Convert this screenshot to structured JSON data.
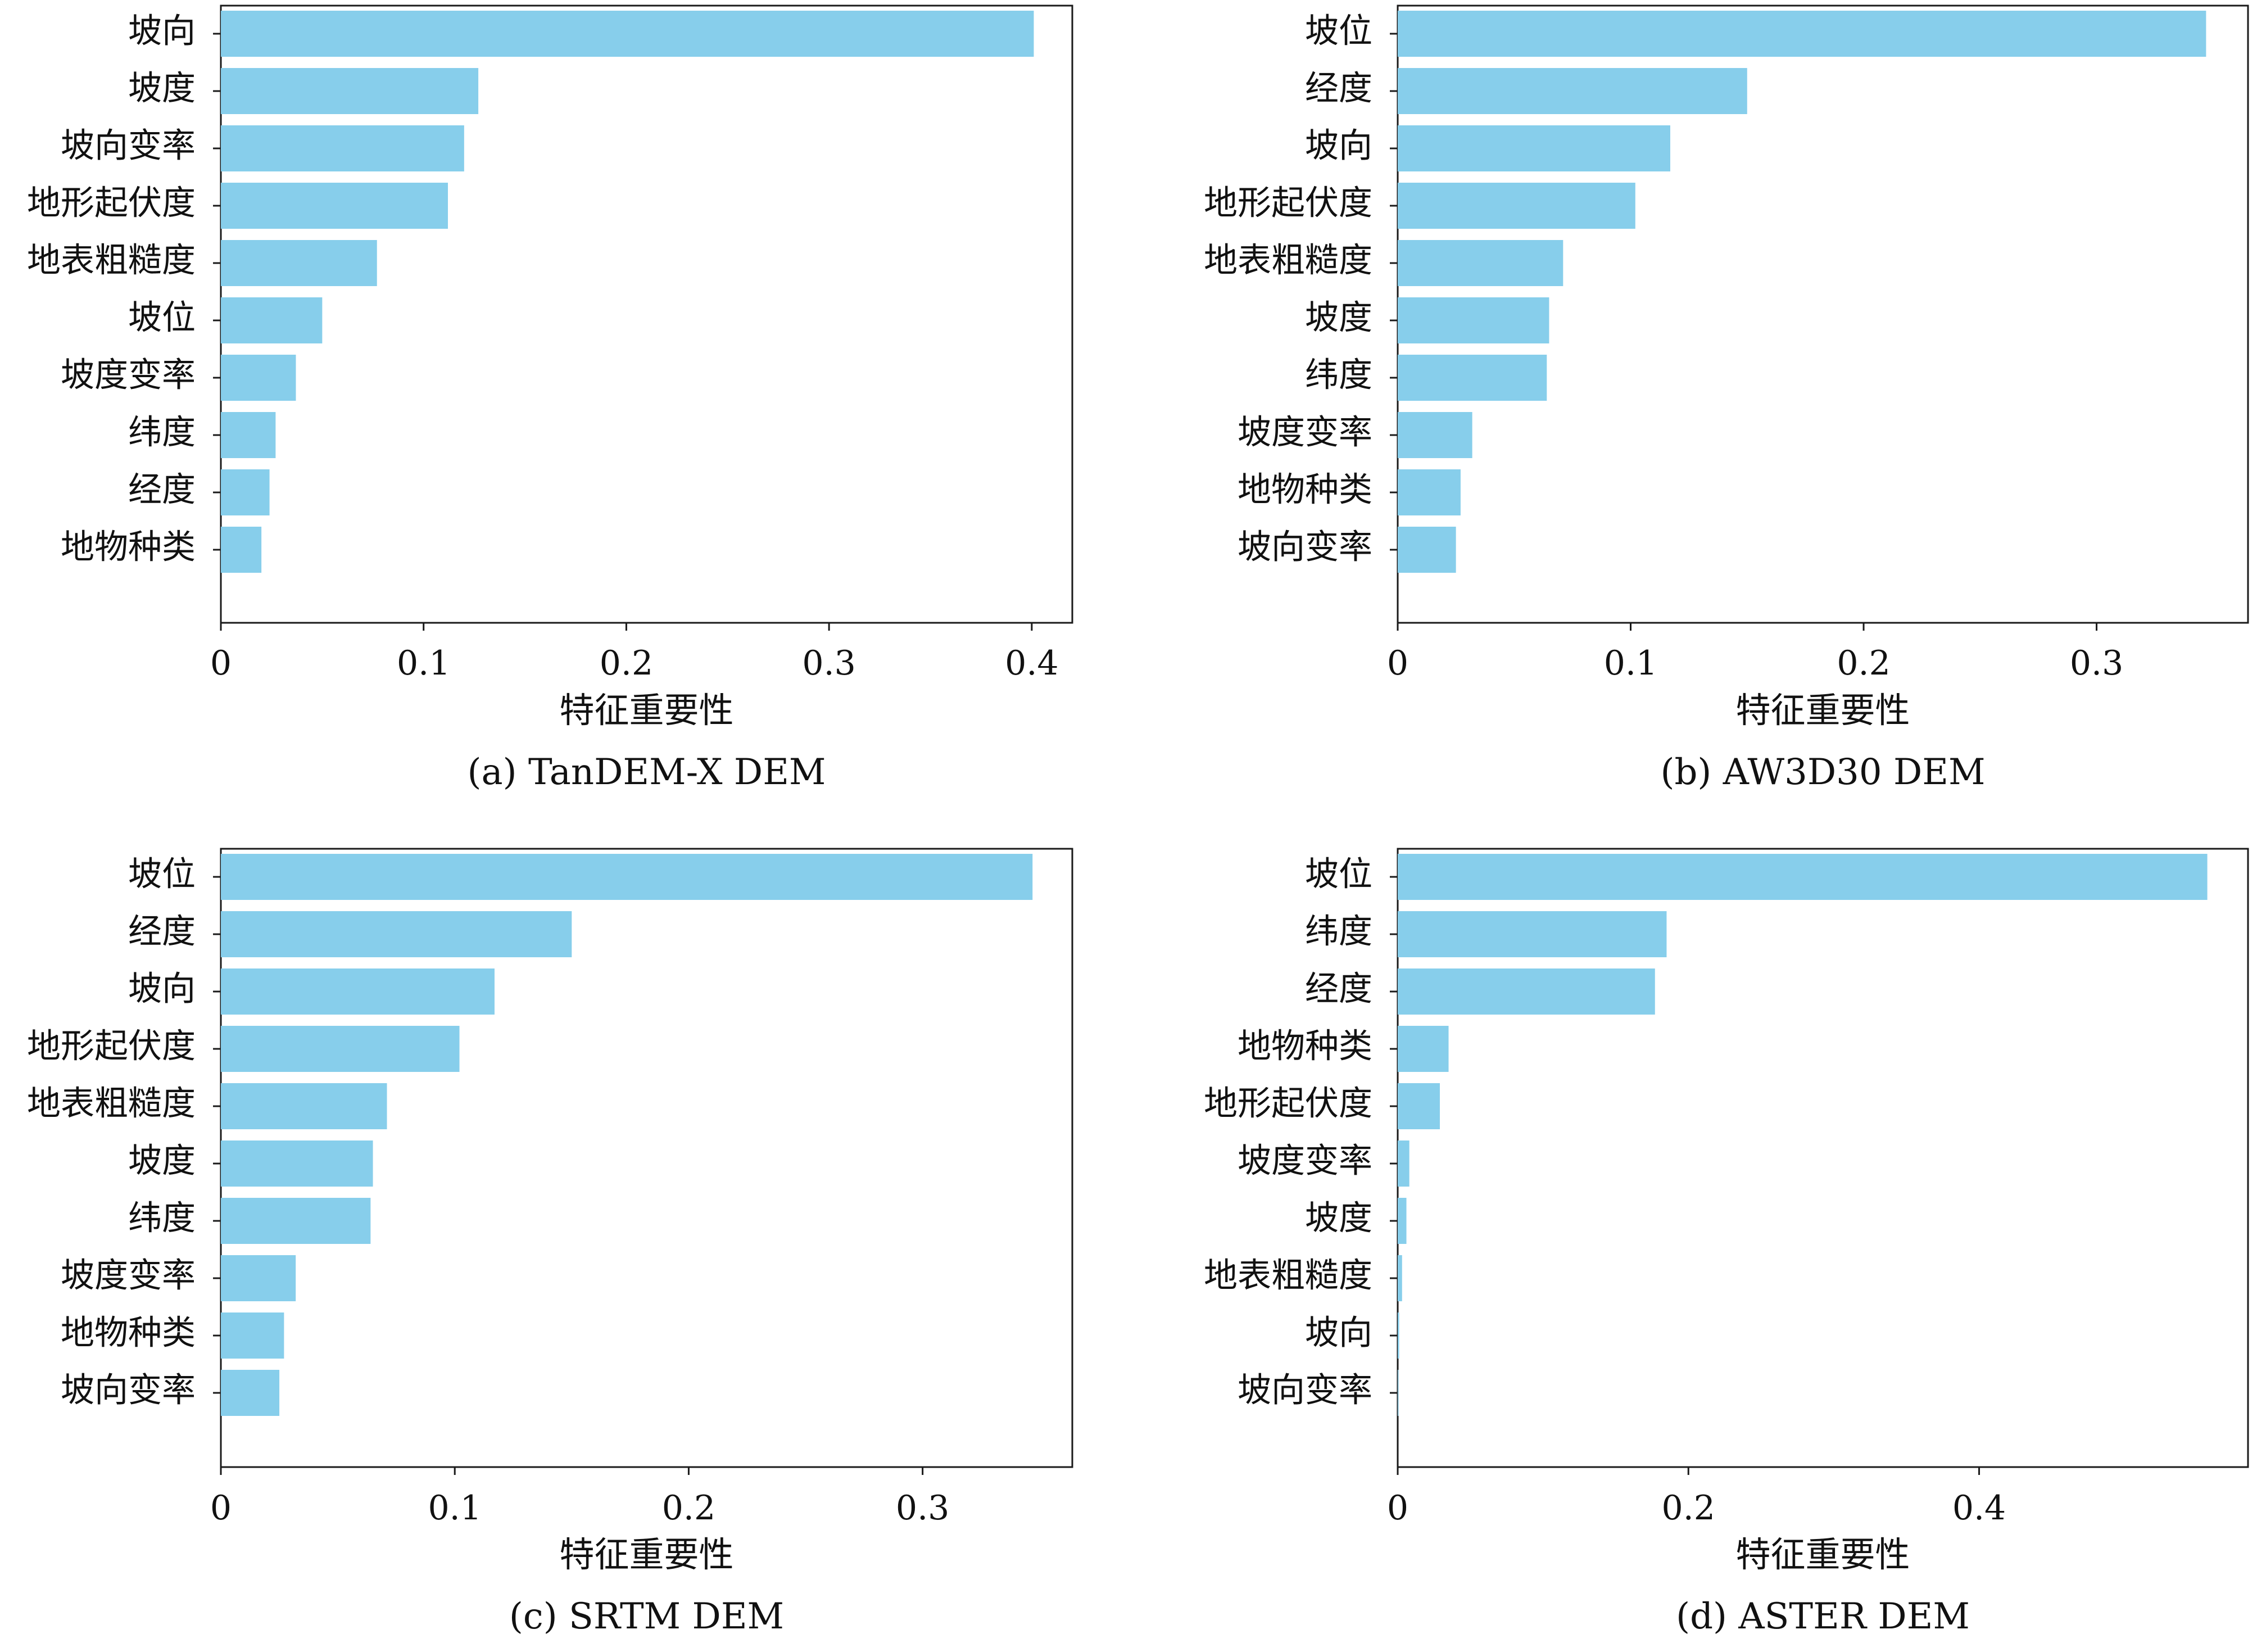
{
  "chart_data": [
    {
      "type": "bar",
      "orientation": "horizontal",
      "caption": "(a) TanDEM-X DEM",
      "xlabel": "特征重要性",
      "ylabel": "",
      "xlim": [
        0,
        0.42
      ],
      "xticks": [
        0,
        0.1,
        0.2,
        0.3,
        0.4
      ],
      "xtick_labels": [
        "0",
        "0.1",
        "0.2",
        "0.3",
        "0.4"
      ],
      "categories": [
        "坡向",
        "坡度",
        "坡向变率",
        "地形起伏度",
        "地表粗糙度",
        "坡位",
        "坡度变率",
        "纬度",
        "经度",
        "地物种类"
      ],
      "values": [
        0.401,
        0.127,
        0.12,
        0.112,
        0.077,
        0.05,
        0.037,
        0.027,
        0.024,
        0.02
      ],
      "bar_color": "#87CEEB",
      "grid": false
    },
    {
      "type": "bar",
      "orientation": "horizontal",
      "caption": "(b) AW3D30 DEM",
      "xlabel": "特征重要性",
      "ylabel": "",
      "xlim": [
        0,
        0.365
      ],
      "xticks": [
        0,
        0.1,
        0.2,
        0.3
      ],
      "xtick_labels": [
        "0",
        "0.1",
        "0.2",
        "0.3"
      ],
      "categories": [
        "坡位",
        "经度",
        "坡向",
        "地形起伏度",
        "地表粗糙度",
        "坡度",
        "纬度",
        "坡度变率",
        "地物种类",
        "坡向变率"
      ],
      "values": [
        0.347,
        0.15,
        0.117,
        0.102,
        0.071,
        0.065,
        0.064,
        0.032,
        0.027,
        0.025
      ],
      "bar_color": "#87CEEB",
      "grid": false
    },
    {
      "type": "bar",
      "orientation": "horizontal",
      "caption": "(c) SRTM DEM",
      "xlabel": "特征重要性",
      "ylabel": "",
      "xlim": [
        0,
        0.364
      ],
      "xticks": [
        0,
        0.1,
        0.2,
        0.3
      ],
      "xtick_labels": [
        "0",
        "0.1",
        "0.2",
        "0.3"
      ],
      "categories": [
        "坡位",
        "经度",
        "坡向",
        "地形起伏度",
        "地表粗糙度",
        "坡度",
        "纬度",
        "坡度变率",
        "地物种类",
        "坡向变率"
      ],
      "values": [
        0.347,
        0.15,
        0.117,
        0.102,
        0.071,
        0.065,
        0.064,
        0.032,
        0.027,
        0.025
      ],
      "bar_color": "#87CEEB",
      "grid": false
    },
    {
      "type": "bar",
      "orientation": "horizontal",
      "caption": "(d) ASTER DEM",
      "xlabel": "特征重要性",
      "ylabel": "",
      "xlim": [
        0,
        0.585
      ],
      "xticks": [
        0,
        0.2,
        0.4
      ],
      "xtick_labels": [
        "0",
        "0.2",
        "0.4"
      ],
      "categories": [
        "坡位",
        "纬度",
        "经度",
        "地物种类",
        "地形起伏度",
        "坡度变率",
        "坡度",
        "地表粗糙度",
        "坡向",
        "坡向变率"
      ],
      "values": [
        0.557,
        0.185,
        0.177,
        0.035,
        0.029,
        0.008,
        0.006,
        0.003,
        0.001,
        0.0005
      ],
      "bar_color": "#87CEEB",
      "grid": false
    }
  ]
}
